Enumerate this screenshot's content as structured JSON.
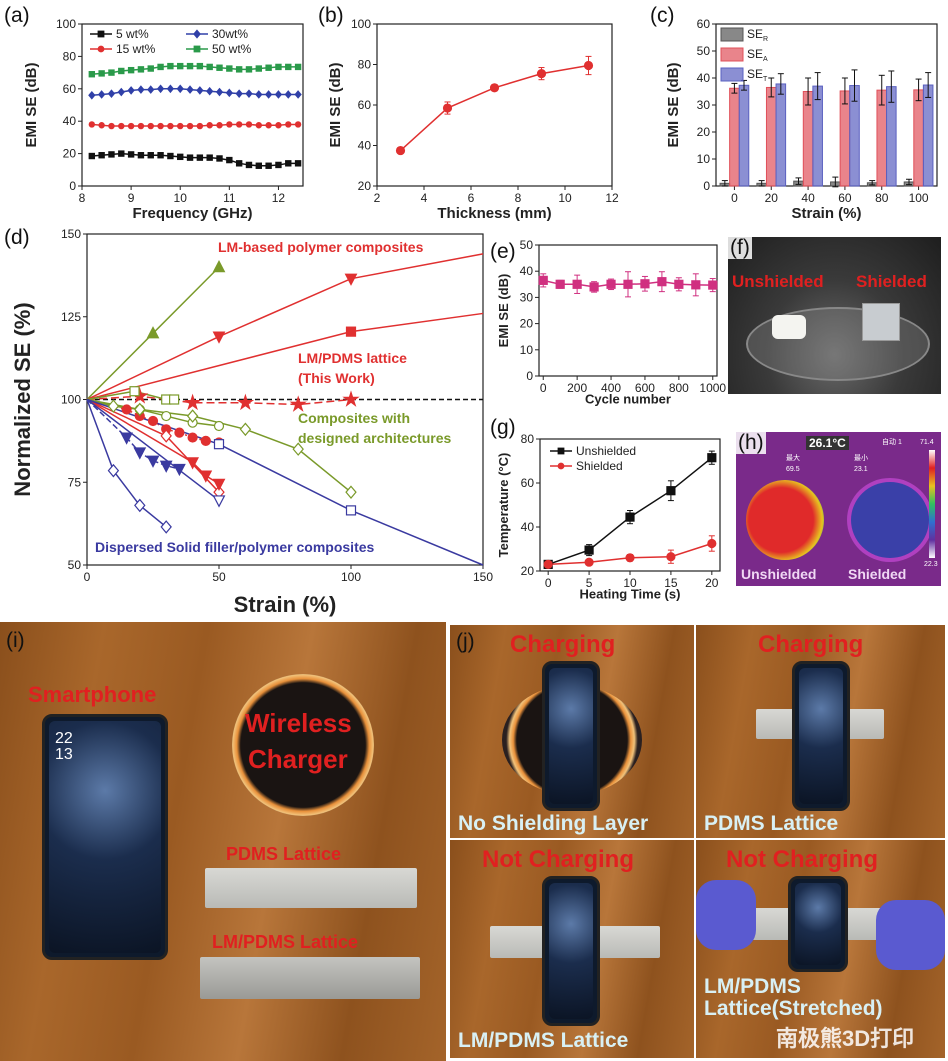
{
  "panel_labels": {
    "a": "(a)",
    "b": "(b)",
    "c": "(c)",
    "d": "(d)",
    "e": "(e)",
    "f": "(f)",
    "g": "(g)",
    "h": "(h)",
    "i": "(i)",
    "j": "(j)"
  },
  "chart_data": [
    {
      "id": "a",
      "type": "line",
      "title": "",
      "xlabel": "Frequency (GHz)",
      "ylabel": "EMI SE (dB)",
      "xlim": [
        8,
        12.5
      ],
      "ylim": [
        0,
        100
      ],
      "xticks": [
        8,
        9,
        10,
        11,
        12
      ],
      "yticks": [
        0,
        20,
        40,
        60,
        80,
        100
      ],
      "legend": "top-left",
      "x": [
        8.2,
        8.4,
        8.6,
        8.8,
        9.0,
        9.2,
        9.4,
        9.6,
        9.8,
        10.0,
        10.2,
        10.4,
        10.6,
        10.8,
        11.0,
        11.2,
        11.4,
        11.6,
        11.8,
        12.0,
        12.2,
        12.4
      ],
      "series": [
        {
          "name": "5 wt%",
          "color": "#111111",
          "marker": "square",
          "values": [
            18.5,
            19,
            19.5,
            20,
            19.5,
            19,
            19,
            19,
            18.5,
            18,
            17.5,
            17.5,
            17.5,
            17,
            16,
            14,
            13,
            12.5,
            12.5,
            13,
            14,
            14
          ]
        },
        {
          "name": "15 wt%",
          "color": "#e03030",
          "marker": "circle",
          "values": [
            38,
            37.5,
            37,
            37,
            37,
            37,
            37,
            37,
            37,
            37,
            37,
            37,
            37.5,
            37.5,
            38,
            38,
            38,
            37.5,
            37.5,
            37.5,
            38,
            38
          ]
        },
        {
          "name": "30wt%",
          "color": "#3040a8",
          "marker": "diamond",
          "values": [
            56,
            56.5,
            57,
            58,
            59,
            59.5,
            59.5,
            60,
            60,
            60,
            59.5,
            59,
            58.5,
            58,
            57.5,
            57,
            57,
            56.5,
            56.5,
            56.5,
            56.5,
            56.5
          ]
        },
        {
          "name": "50 wt%",
          "color": "#2a9a4a",
          "marker": "square",
          "values": [
            69,
            69.5,
            70,
            71,
            71.5,
            72,
            72.5,
            73.5,
            74,
            74,
            74,
            74,
            73.5,
            73,
            72.5,
            72,
            72,
            72.5,
            73,
            73.5,
            73.5,
            73.5
          ]
        }
      ]
    },
    {
      "id": "b",
      "type": "line",
      "title": "",
      "xlabel": "Thickness (mm)",
      "ylabel": "EMI SE (dB)",
      "xlim": [
        2,
        12
      ],
      "ylim": [
        20,
        100
      ],
      "xticks": [
        2,
        4,
        6,
        8,
        10,
        12
      ],
      "yticks": [
        20,
        40,
        60,
        80,
        100
      ],
      "x": [
        3,
        5,
        7,
        9,
        11
      ],
      "series": [
        {
          "name": "SE",
          "color": "#e03030",
          "marker": "circle",
          "values": [
            37.5,
            58.5,
            68.5,
            75.5,
            79.5
          ],
          "errors": [
            0.8,
            3,
            1.5,
            3,
            4.5
          ]
        }
      ]
    },
    {
      "id": "c",
      "type": "bar",
      "title": "",
      "xlabel": "Strain (%)",
      "ylabel": "EMI SE (dB)",
      "ylim": [
        0,
        60
      ],
      "yticks": [
        0,
        10,
        20,
        30,
        40,
        50,
        60
      ],
      "legend": "top-left",
      "categories": [
        "0",
        "20",
        "40",
        "60",
        "80",
        "100"
      ],
      "series": [
        {
          "name": "SE",
          "sub": "R",
          "color": "#555555",
          "values": [
            1,
            1,
            1.8,
            1.5,
            1.2,
            1.5
          ],
          "errors": [
            1,
            1,
            1.2,
            1.8,
            0.8,
            1
          ]
        },
        {
          "name": "SE",
          "sub": "A",
          "color": "#e0505a",
          "values": [
            36.2,
            36.5,
            35,
            35.2,
            35.5,
            35.6
          ],
          "errors": [
            1.8,
            3.5,
            5,
            4.8,
            5.5,
            4
          ]
        },
        {
          "name": "SE",
          "sub": "T",
          "color": "#5a60c0",
          "values": [
            37.3,
            37.8,
            37,
            37.2,
            36.8,
            37.4
          ],
          "errors": [
            1.8,
            3.8,
            5,
            5.8,
            5.8,
            4.6
          ]
        }
      ]
    },
    {
      "id": "d",
      "type": "line",
      "title": "",
      "xlabel": "Strain (%)",
      "ylabel": "Normalized SE (%)",
      "xlim": [
        0,
        150
      ],
      "ylim": [
        50,
        150
      ],
      "xticks": [
        0,
        50,
        100,
        150
      ],
      "yticks": [
        50,
        75,
        100,
        125,
        150
      ],
      "reference_line": 100,
      "annotations": [
        {
          "text": "LM-based polymer composites",
          "color": "#e03030"
        },
        {
          "text": "LM/PDMS lattice",
          "color": "#e03030"
        },
        {
          "text": "(This Work)",
          "color": "#e03030"
        },
        {
          "text": "Composites with",
          "color": "#7a9a2a"
        },
        {
          "text": "designed architectures",
          "color": "#7a9a2a"
        },
        {
          "text": "Dispersed Solid filler/polymer composites",
          "color": "#3a3aa0"
        }
      ],
      "series": [
        {
          "name": "LM tri-up",
          "color": "#7a9a2a",
          "marker": "triangle-up",
          "filled": true,
          "points": [
            [
              0,
              100
            ],
            [
              25,
              120
            ],
            [
              50,
              140
            ]
          ]
        },
        {
          "name": "LM tri-down",
          "color": "#e03030",
          "marker": "triangle-down",
          "filled": true,
          "points": [
            [
              0,
              100
            ],
            [
              50,
              119
            ],
            [
              100,
              136.5
            ],
            [
              150,
              144
            ]
          ]
        },
        {
          "name": "LM square",
          "color": "#e03030",
          "marker": "square",
          "filled": true,
          "points": [
            [
              0,
              100
            ],
            [
              100,
              120.5
            ],
            [
              150,
              126
            ]
          ]
        },
        {
          "name": "LM/PDMS lattice (This Work)",
          "color": "#e03030",
          "marker": "star",
          "filled": true,
          "dash": "8,4",
          "points": [
            [
              0,
              100
            ],
            [
              20,
              101
            ],
            [
              40,
              99
            ],
            [
              60,
              99
            ],
            [
              80,
              98.5
            ],
            [
              100,
              100
            ]
          ]
        },
        {
          "name": "LM circle",
          "color": "#e03030",
          "marker": "circle",
          "filled": true,
          "dash": "2,3",
          "points": [
            [
              0,
              100
            ],
            [
              15,
              97
            ],
            [
              20,
              95
            ],
            [
              25,
              93.5
            ],
            [
              30,
              91
            ],
            [
              35,
              90
            ],
            [
              40,
              88.5
            ],
            [
              45,
              87.5
            ],
            [
              50,
              87
            ]
          ]
        },
        {
          "name": "LM open diamond",
          "color": "#e03030",
          "marker": "diamond",
          "filled": false,
          "points": [
            [
              0,
              100
            ],
            [
              30,
              89
            ],
            [
              50,
              72
            ]
          ]
        },
        {
          "name": "LM down red",
          "color": "#e03030",
          "marker": "triangle-down",
          "filled": true,
          "points": [
            [
              0,
              100
            ],
            [
              40,
              81
            ],
            [
              45,
              77
            ],
            [
              50,
              74.5
            ]
          ]
        },
        {
          "name": "Arch open circle",
          "color": "#7a9a2a",
          "marker": "circle",
          "filled": false,
          "points": [
            [
              0,
              100
            ],
            [
              20,
              97
            ],
            [
              30,
              95
            ],
            [
              40,
              93
            ],
            [
              50,
              92
            ]
          ]
        },
        {
          "name": "Arch diamond",
          "color": "#7a9a2a",
          "marker": "diamond",
          "filled": false,
          "points": [
            [
              0,
              100
            ],
            [
              10,
              98
            ],
            [
              20,
              97
            ],
            [
              40,
              95
            ],
            [
              60,
              91
            ],
            [
              80,
              85
            ],
            [
              100,
              72
            ]
          ]
        },
        {
          "name": "Arch square",
          "color": "#7a9a2a",
          "marker": "square",
          "filled": false,
          "points": [
            [
              0,
              100
            ],
            [
              18,
              102.5
            ],
            [
              30,
              100
            ],
            [
              33,
              100
            ]
          ]
        },
        {
          "name": "Solid diamond",
          "color": "#3a3aa0",
          "marker": "diamond",
          "filled": false,
          "points": [
            [
              0,
              100
            ],
            [
              10,
              78.5
            ],
            [
              20,
              68
            ],
            [
              30,
              61.5
            ]
          ]
        },
        {
          "name": "Solid tri-down",
          "color": "#3a3aa0",
          "marker": "triangle-down",
          "filled": true,
          "dash": "6,3",
          "points": [
            [
              0,
              100
            ],
            [
              15,
              88.5
            ],
            [
              20,
              84
            ],
            [
              25,
              81.5
            ],
            [
              30,
              80
            ],
            [
              35,
              79
            ]
          ]
        },
        {
          "name": "Solid open tri-down",
          "color": "#3a3aa0",
          "marker": "triangle-down",
          "filled": false,
          "points": [
            [
              0,
              100
            ],
            [
              50,
              69.5
            ]
          ]
        },
        {
          "name": "Solid square",
          "color": "#3a3aa0",
          "marker": "square",
          "filled": false,
          "points": [
            [
              0,
              100
            ],
            [
              50,
              86.5
            ],
            [
              100,
              66.5
            ],
            [
              150,
              50
            ]
          ]
        }
      ]
    },
    {
      "id": "e",
      "type": "line",
      "title": "",
      "xlabel": "Cycle number",
      "ylabel": "EMI SE (dB)",
      "xlim": [
        -25,
        1025
      ],
      "ylim": [
        0,
        50
      ],
      "xticks": [
        0,
        200,
        400,
        600,
        800,
        1000
      ],
      "yticks": [
        0,
        10,
        20,
        30,
        40,
        50
      ],
      "x": [
        0,
        100,
        200,
        300,
        400,
        500,
        600,
        700,
        800,
        900,
        1000
      ],
      "series": [
        {
          "name": "EMI SE",
          "color": "#d03080",
          "marker": "square",
          "values": [
            36.5,
            35,
            35,
            34,
            35,
            35,
            35.2,
            36,
            35,
            34.8,
            34.7
          ],
          "errors": [
            2.5,
            1.5,
            3.5,
            2,
            2,
            4.8,
            2.8,
            3.8,
            2.5,
            4.2,
            2.5
          ]
        }
      ]
    },
    {
      "id": "g",
      "type": "line",
      "title": "",
      "xlabel": "Heating Time (s)",
      "ylabel": "Temperature (°C)",
      "xlim": [
        -1,
        21
      ],
      "ylim": [
        20,
        80
      ],
      "xticks": [
        0,
        5,
        10,
        15,
        20
      ],
      "yticks": [
        20,
        40,
        60,
        80
      ],
      "legend": "top-left",
      "x": [
        0,
        5,
        10,
        15,
        20
      ],
      "series": [
        {
          "name": "Unshielded",
          "color": "#111111",
          "marker": "square",
          "values": [
            23,
            29.5,
            44.5,
            56.5,
            71.5
          ],
          "errors": [
            0.5,
            2.5,
            3,
            4.5,
            3
          ]
        },
        {
          "name": "Shielded",
          "color": "#e03030",
          "marker": "circle",
          "values": [
            23,
            24,
            26,
            26.5,
            32.5
          ],
          "errors": [
            0.5,
            0.5,
            1.5,
            3,
            3.5
          ]
        }
      ]
    }
  ],
  "photo_f": {
    "left": "Unshielded",
    "right": "Shielded"
  },
  "photo_h": {
    "center_temp": "26.1°C",
    "max_label": "最大",
    "max_value": "69.5",
    "min_label": "最小",
    "min_value": "23.1",
    "mode": "自动 1",
    "scale_max": "71.4",
    "scale_min": "22.3",
    "left": "Unshielded",
    "right": "Shielded"
  },
  "photo_i": {
    "phone_label": "Smartphone",
    "charger_label_1": "Wireless",
    "charger_label_2": "Charger",
    "strip1": "PDMS Lattice",
    "strip2": "LM/PDMS Lattice",
    "clock": "22\n13"
  },
  "photo_j": [
    {
      "status": "Charging",
      "caption": "No Shielding Layer"
    },
    {
      "status": "Charging",
      "caption": "PDMS Lattice"
    },
    {
      "status": "Not Charging",
      "caption": "LM/PDMS Lattice"
    },
    {
      "status": "Not Charging",
      "caption": "LM/PDMS\nLattice(Stretched)"
    }
  ],
  "watermark": "南极熊3D打印"
}
